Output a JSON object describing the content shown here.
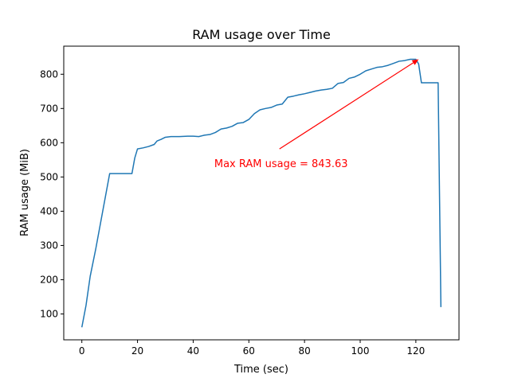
{
  "chart_data": {
    "type": "line",
    "title": "RAM usage over Time",
    "xlabel": "Time (sec)",
    "ylabel": "RAM usage (MiB)",
    "xlim": [
      -6.5,
      135.5
    ],
    "ylim": [
      24.5,
      882
    ],
    "xticks": [
      0,
      20,
      40,
      60,
      80,
      100,
      120
    ],
    "yticks": [
      100,
      200,
      300,
      400,
      500,
      600,
      700,
      800
    ],
    "grid": false,
    "series": [
      {
        "color": "#1f77b4",
        "x": [
          0,
          1.5,
          3,
          5,
          7.5,
          10,
          12,
          14,
          16,
          18,
          19,
          20,
          22,
          24,
          26,
          27,
          28.5,
          30,
          32,
          35,
          38,
          40,
          42,
          44,
          46,
          48,
          50,
          52,
          54,
          56,
          58,
          60,
          62,
          64,
          66,
          68,
          70,
          72,
          74,
          76,
          78,
          80,
          82,
          84,
          86,
          88,
          90,
          92,
          94,
          96,
          98,
          100,
          102,
          104,
          106,
          108,
          110,
          112,
          114,
          116,
          118,
          120,
          121,
          122,
          124,
          126,
          128,
          129
        ],
        "y": [
          61,
          125,
          210,
          290,
          400,
          510,
          510,
          510,
          510,
          510,
          555,
          582,
          585,
          589,
          595,
          605,
          610,
          616,
          618,
          618,
          619,
          619,
          618,
          622,
          624,
          630,
          640,
          643,
          648,
          657,
          659,
          668,
          685,
          696,
          700,
          703,
          710,
          713,
          733,
          736,
          740,
          743,
          747,
          751,
          754,
          756,
          759,
          773,
          776,
          788,
          792,
          800,
          810,
          815,
          820,
          822,
          826,
          832,
          838,
          840,
          843.63,
          843.63,
          830,
          775,
          775,
          775,
          775,
          120
        ]
      }
    ],
    "annotation": {
      "text": "Max RAM usage = 843.63",
      "x": 121,
      "y": 843.63,
      "text_x": 71,
      "text_y": 540,
      "color": "#ff0000"
    }
  }
}
